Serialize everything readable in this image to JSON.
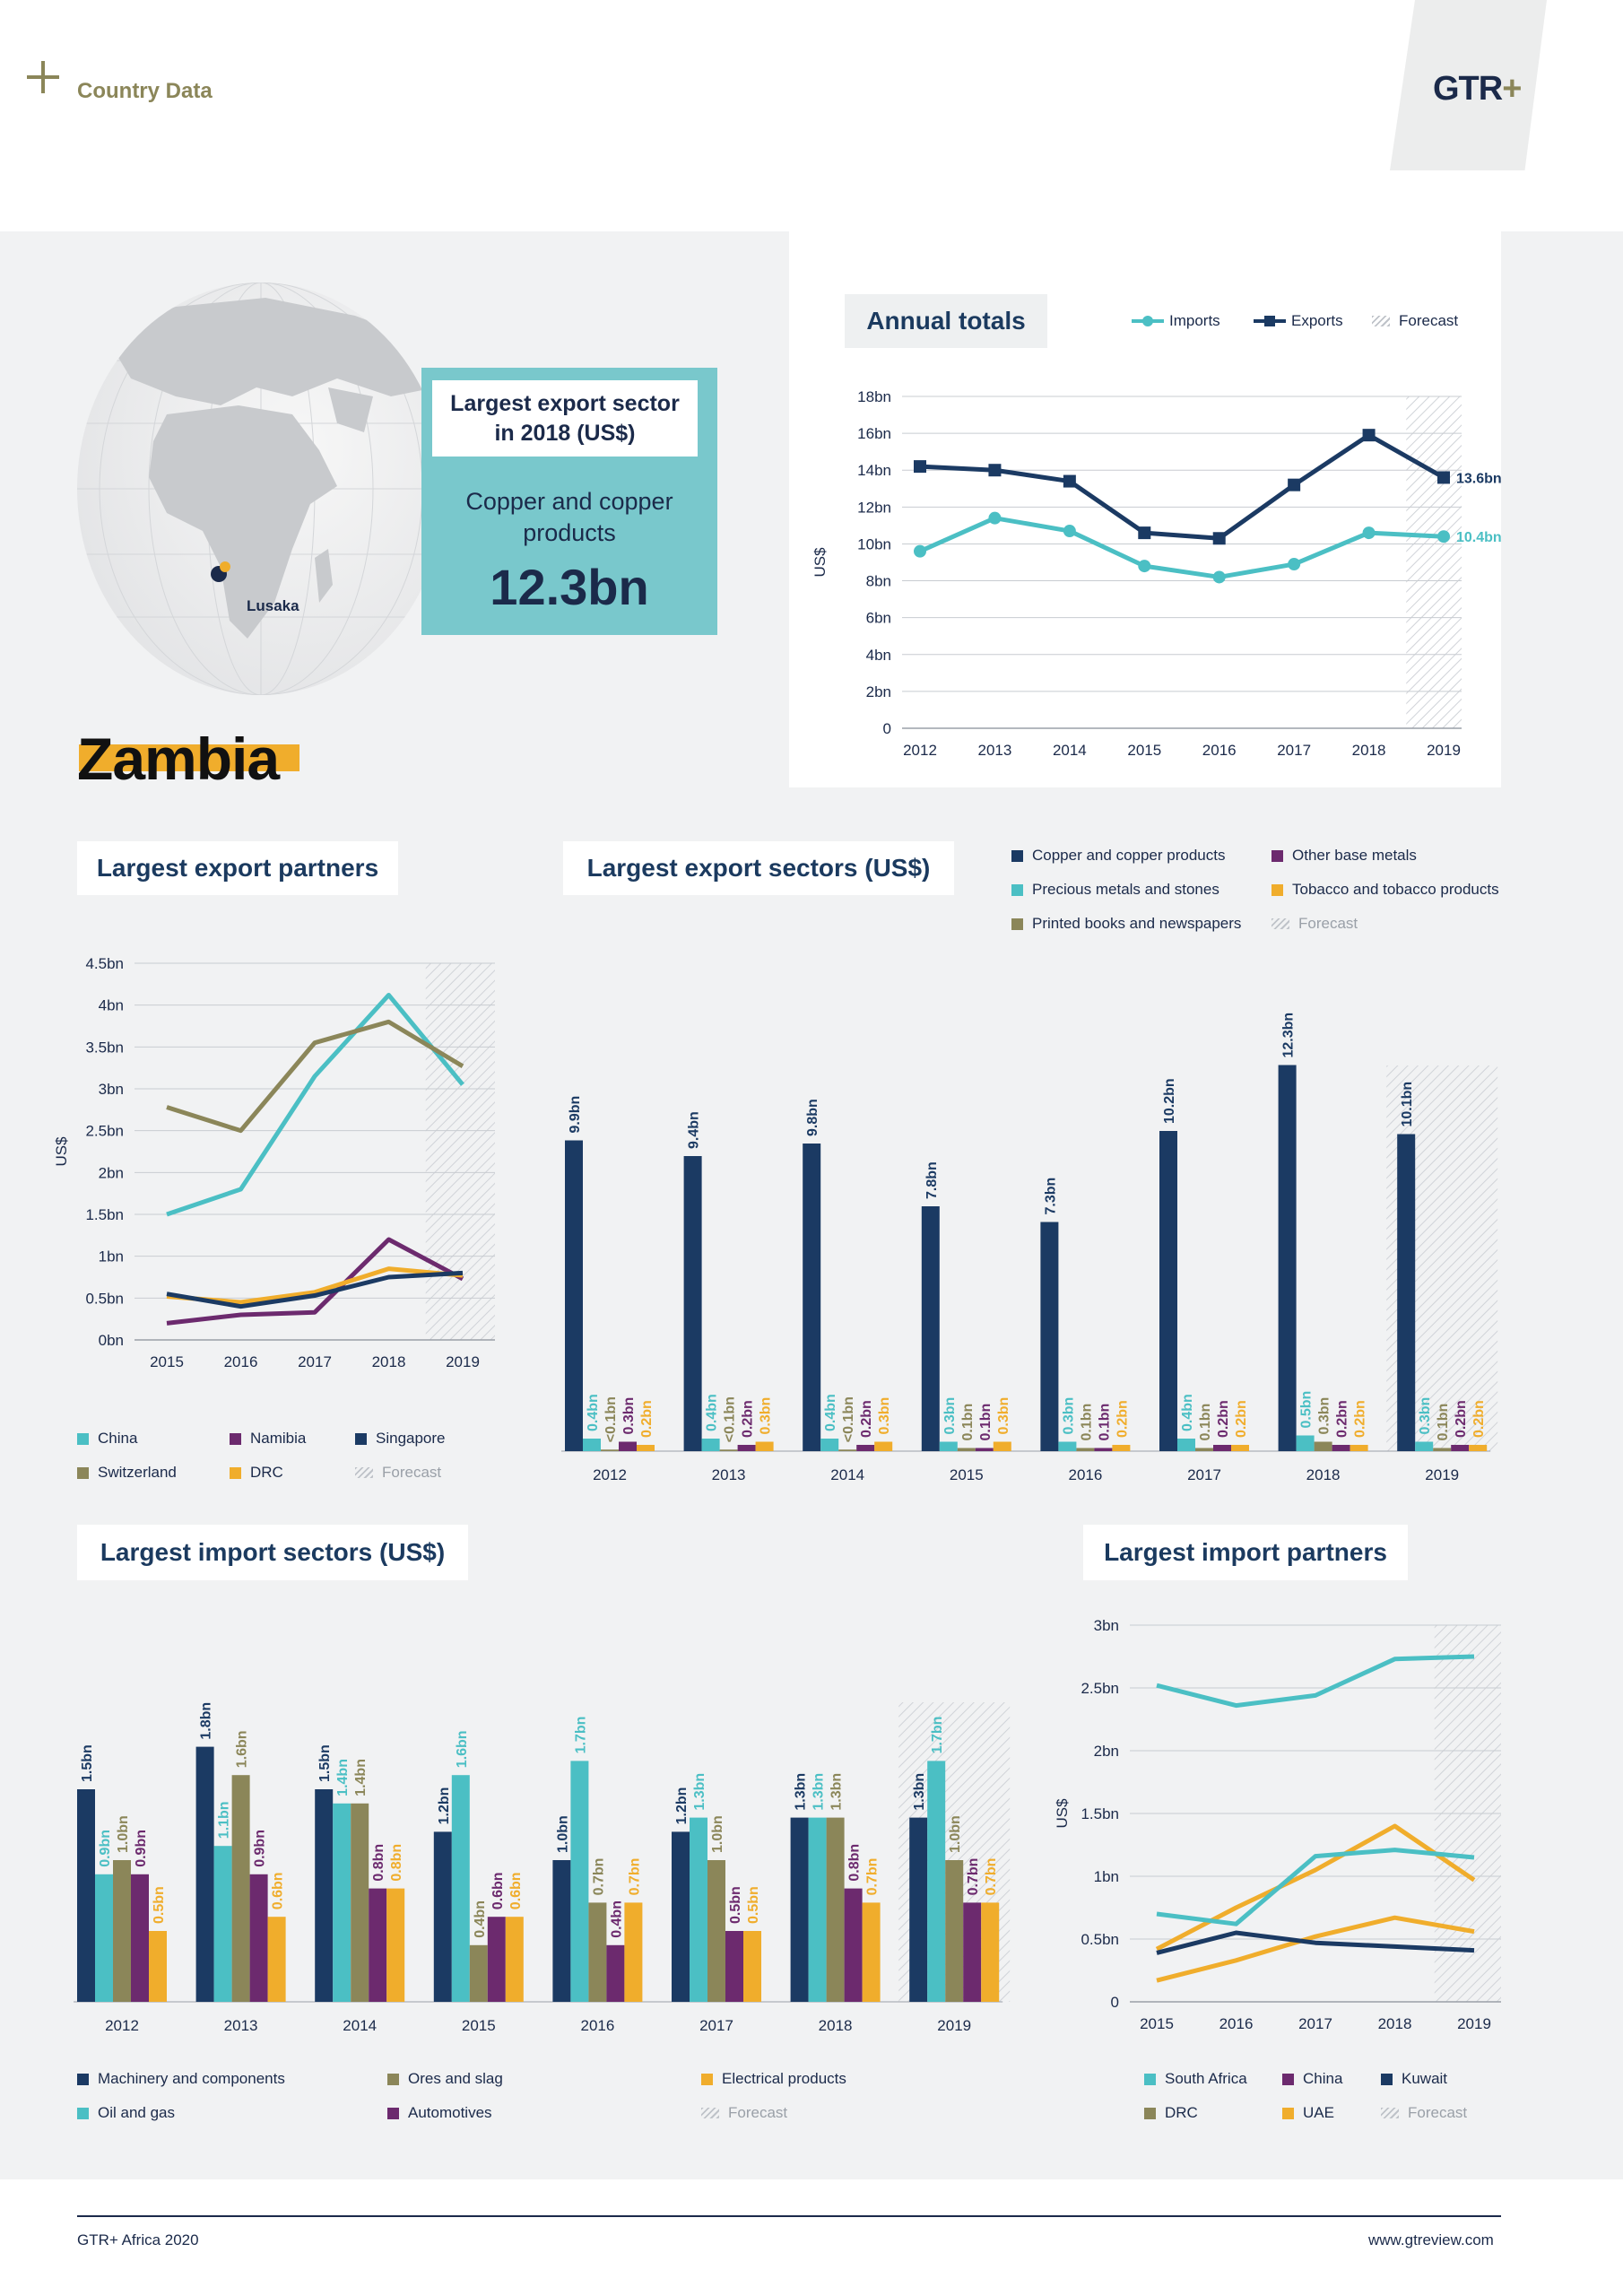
{
  "header": {
    "section": "Country Data",
    "logo": "GTR+"
  },
  "country": "Zambia",
  "colors": {
    "navy": "#1b3a63",
    "teal": "#4bbfc4",
    "olive": "#8b8659",
    "purple": "#6c2a6e",
    "gold": "#f0ad2c",
    "gray": "#bfc3c9"
  },
  "callout": {
    "title": "Largest export sector in 2018 (US$)",
    "sector": "Copper and copper products",
    "value": "12.3bn",
    "city": "Lusaka"
  },
  "annual": {
    "title": "Annual totals",
    "legend": {
      "imports": "Imports",
      "exports": "Exports",
      "forecast": "Forecast"
    },
    "ylabel": "US$",
    "yticks": [
      "0",
      "2bn",
      "4bn",
      "6bn",
      "8bn",
      "10bn",
      "12bn",
      "14bn",
      "16bn",
      "18bn"
    ],
    "end_exports": "13.6bn",
    "end_imports": "10.4bn"
  },
  "export_partners": {
    "title": "Largest export partners",
    "ylabel": "US$",
    "yticks": [
      "0bn",
      "0.5bn",
      "1bn",
      "1.5bn",
      "2bn",
      "2.5bn",
      "3bn",
      "3.5bn",
      "4bn",
      "4.5bn"
    ],
    "legend": [
      "China",
      "Namibia",
      "Singapore",
      "Switzerland",
      "DRC",
      "Forecast"
    ]
  },
  "export_sectors": {
    "title": "Largest export sectors (US$)",
    "legend": [
      "Copper and copper products",
      "Other base metals",
      "Precious metals and stones",
      "Tobacco and tobacco products",
      "Printed books and newspapers",
      "Forecast"
    ]
  },
  "import_sectors": {
    "title": "Largest import sectors (US$)",
    "legend": [
      "Machinery and components",
      "Ores and slag",
      "Electrical products",
      "Oil and gas",
      "Automotives",
      "Forecast"
    ]
  },
  "import_partners": {
    "title": "Largest import partners",
    "ylabel": "US$",
    "yticks": [
      "0",
      "0.5bn",
      "1bn",
      "1.5bn",
      "2bn",
      "2.5bn",
      "3bn"
    ],
    "legend": [
      "South Africa",
      "China",
      "Kuwait",
      "DRC",
      "UAE",
      "Forecast"
    ]
  },
  "footer": {
    "left": "GTR+ Africa 2020",
    "right": "www.gtreview.com"
  },
  "chart_data": [
    {
      "type": "line",
      "title": "Annual totals",
      "x": [
        "2012",
        "2013",
        "2014",
        "2015",
        "2016",
        "2017",
        "2018",
        "2019"
      ],
      "ylim": [
        0,
        18
      ],
      "ylabel": "US$",
      "forecast": [
        "2019"
      ],
      "series": [
        {
          "name": "Imports",
          "values": [
            9.6,
            11.4,
            10.7,
            8.8,
            8.2,
            8.9,
            10.6,
            10.4
          ]
        },
        {
          "name": "Exports",
          "values": [
            14.2,
            14.0,
            13.4,
            10.6,
            10.3,
            13.2,
            15.9,
            13.6
          ]
        }
      ]
    },
    {
      "type": "line",
      "title": "Largest export partners",
      "x": [
        "2015",
        "2016",
        "2017",
        "2018",
        "2019"
      ],
      "ylim": [
        0,
        4.5
      ],
      "ylabel": "US$",
      "forecast": [
        "2019"
      ],
      "series": [
        {
          "name": "China",
          "values": [
            1.5,
            1.8,
            3.15,
            4.12,
            3.05
          ]
        },
        {
          "name": "Switzerland",
          "values": [
            2.78,
            2.5,
            3.55,
            3.8,
            3.27
          ]
        },
        {
          "name": "Namibia",
          "values": [
            0.2,
            0.3,
            0.33,
            1.2,
            0.73
          ]
        },
        {
          "name": "DRC",
          "values": [
            0.52,
            0.45,
            0.57,
            0.85,
            0.77
          ]
        },
        {
          "name": "Singapore",
          "values": [
            0.55,
            0.4,
            0.53,
            0.75,
            0.8
          ]
        }
      ]
    },
    {
      "type": "bar",
      "title": "Largest export sectors (US$)",
      "categories": [
        "2012",
        "2013",
        "2014",
        "2015",
        "2016",
        "2017",
        "2018",
        "2019"
      ],
      "forecast": [
        "2019"
      ],
      "series": [
        {
          "name": "Copper and copper products",
          "values": [
            9.9,
            9.4,
            9.8,
            7.8,
            7.3,
            10.2,
            12.3,
            10.1
          ],
          "labels": [
            "9.9bn",
            "9.4bn",
            "9.8bn",
            "7.8bn",
            "7.3bn",
            "10.2bn",
            "12.3bn",
            "10.1bn"
          ]
        },
        {
          "name": "Precious metals and stones",
          "values": [
            0.4,
            0.4,
            0.4,
            0.3,
            0.3,
            0.4,
            0.5,
            0.3
          ],
          "labels": [
            "0.4bn",
            "0.4bn",
            "0.4bn",
            "0.3bn",
            "0.3bn",
            "0.4bn",
            "0.5bn",
            "0.3bn"
          ]
        },
        {
          "name": "Printed books and newspapers",
          "values": [
            0.05,
            0.05,
            0.05,
            0.1,
            0.1,
            0.1,
            0.3,
            0.1
          ],
          "labels": [
            "<0.1bn",
            "<0.1bn",
            "<0.1bn",
            "0.1bn",
            "0.1bn",
            "0.1bn",
            "0.3bn",
            "0.1bn"
          ]
        },
        {
          "name": "Other base metals",
          "values": [
            0.3,
            0.2,
            0.2,
            0.1,
            0.1,
            0.2,
            0.2,
            0.2
          ],
          "labels": [
            "0.3bn",
            "0.2bn",
            "0.2bn",
            "0.1bn",
            "0.1bn",
            "0.2bn",
            "0.2bn",
            "0.2bn"
          ]
        },
        {
          "name": "Tobacco and tobacco products",
          "values": [
            0.2,
            0.3,
            0.3,
            0.3,
            0.2,
            0.2,
            0.2,
            0.2
          ],
          "labels": [
            "0.2bn",
            "0.3bn",
            "0.3bn",
            "0.3bn",
            "0.2bn",
            "0.2bn",
            "0.2bn",
            "0.2bn"
          ]
        }
      ]
    },
    {
      "type": "bar",
      "title": "Largest import sectors (US$)",
      "categories": [
        "2012",
        "2013",
        "2014",
        "2015",
        "2016",
        "2017",
        "2018",
        "2019"
      ],
      "forecast": [
        "2019"
      ],
      "series": [
        {
          "name": "Machinery and components",
          "values": [
            1.5,
            1.8,
            1.5,
            1.2,
            1.0,
            1.2,
            1.3,
            1.3
          ],
          "labels": [
            "1.5bn",
            "1.8bn",
            "1.5bn",
            "1.2bn",
            "1.0bn",
            "1.2bn",
            "1.3bn",
            "1.3bn"
          ]
        },
        {
          "name": "Oil and gas",
          "values": [
            0.9,
            1.1,
            1.4,
            1.6,
            1.7,
            1.3,
            1.3,
            1.7
          ],
          "labels": [
            "0.9bn",
            "1.1bn",
            "1.4bn",
            "1.6bn",
            "1.7bn",
            "1.3bn",
            "1.3bn",
            "1.7bn"
          ]
        },
        {
          "name": "Ores and slag",
          "values": [
            1.0,
            1.6,
            1.4,
            0.4,
            0.7,
            1.0,
            1.3,
            1.0
          ],
          "labels": [
            "1.0bn",
            "1.6bn",
            "1.4bn",
            "0.4bn",
            "0.7bn",
            "1.0bn",
            "1.3bn",
            "1.0bn"
          ]
        },
        {
          "name": "Automotives",
          "values": [
            0.9,
            0.9,
            0.8,
            0.6,
            0.4,
            0.5,
            0.8,
            0.7
          ],
          "labels": [
            "0.9bn",
            "0.9bn",
            "0.8bn",
            "0.6bn",
            "0.4bn",
            "0.5bn",
            "0.8bn",
            "0.7bn"
          ]
        },
        {
          "name": "Electrical products",
          "values": [
            0.5,
            0.6,
            0.8,
            0.6,
            0.7,
            0.5,
            0.7,
            0.7
          ],
          "labels": [
            "0.5bn",
            "0.6bn",
            "0.8bn",
            "0.6bn",
            "0.7bn",
            "0.5bn",
            "0.7bn",
            "0.7bn"
          ]
        }
      ]
    },
    {
      "type": "line",
      "title": "Largest import partners",
      "x": [
        "2015",
        "2016",
        "2017",
        "2018",
        "2019"
      ],
      "ylim": [
        0,
        3
      ],
      "ylabel": "US$",
      "forecast": [
        "2019"
      ],
      "series": [
        {
          "name": "South Africa",
          "values": [
            2.52,
            2.36,
            2.44,
            2.73,
            2.75
          ]
        },
        {
          "name": "DRC",
          "values": [
            0.42,
            0.75,
            1.05,
            1.4,
            0.97
          ]
        },
        {
          "name": "China",
          "values": [
            0.7,
            0.62,
            1.16,
            1.21,
            1.15
          ]
        },
        {
          "name": "UAE",
          "values": [
            0.17,
            0.33,
            0.52,
            0.67,
            0.56
          ]
        },
        {
          "name": "Kuwait",
          "values": [
            0.39,
            0.55,
            0.47,
            0.44,
            0.41
          ]
        }
      ]
    }
  ]
}
